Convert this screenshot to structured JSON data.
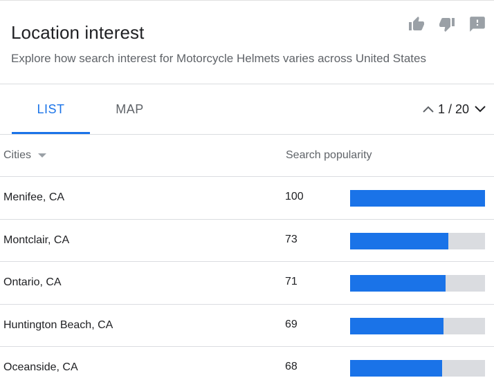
{
  "header": {
    "title": "Location interest",
    "subtitle": "Explore how search interest for Motorcycle Helmets varies across United States",
    "actions": [
      {
        "icon": "thumb-up-icon"
      },
      {
        "icon": "thumb-down-icon"
      },
      {
        "icon": "feedback-icon"
      }
    ]
  },
  "tabs": [
    {
      "label": "LIST",
      "active": true
    },
    {
      "label": "MAP",
      "active": false
    }
  ],
  "pager": {
    "text": "1 / 20",
    "prev_icon": "chevron-up-icon",
    "next_icon": "chevron-down-icon"
  },
  "table": {
    "columns": {
      "cities": "Cities",
      "popularity": "Search popularity"
    },
    "rows": [
      {
        "city": "Menifee, CA",
        "value": "100",
        "fraction": 1.0
      },
      {
        "city": "Montclair, CA",
        "value": "73",
        "fraction": 0.73
      },
      {
        "city": "Ontario, CA",
        "value": "71",
        "fraction": 0.71
      },
      {
        "city": "Huntington Beach, CA",
        "value": "69",
        "fraction": 0.69
      },
      {
        "city": "Oceanside, CA",
        "value": "68",
        "fraction": 0.68
      }
    ]
  },
  "colors": {
    "accent": "#1a73e8",
    "bar_track": "#dadce0",
    "icon": "#9aa0a6"
  }
}
